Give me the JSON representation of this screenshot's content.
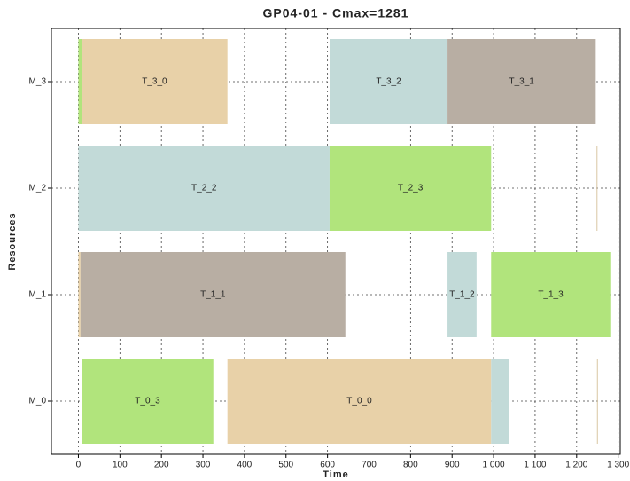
{
  "chart_data": {
    "type": "gantt",
    "title": "GP04-01 - Cmax=1281",
    "xlabel": "Time",
    "ylabel": "Resources",
    "categories": [
      "M_0",
      "M_1",
      "M_2",
      "M_3"
    ],
    "tasks": [
      [
        {
          "start": 8,
          "end": 325,
          "label": "T_0_3",
          "color": "#b1e47c"
        },
        {
          "start": 359,
          "end": 994,
          "label": "T_0_0",
          "color": "#e8d1a8"
        },
        {
          "start": 994,
          "end": 1038,
          "color": "#c2dad8"
        },
        {
          "start": 1249,
          "end": 1251,
          "color": "#d9c7a3"
        }
      ],
      [
        {
          "start": 0,
          "end": 5,
          "color": "#e8d1a8"
        },
        {
          "start": 5,
          "end": 643,
          "label": "T_1_1",
          "color": "#b8aea3"
        },
        {
          "start": 889,
          "end": 959,
          "label": "T_1_2",
          "color": "#c2dad8"
        },
        {
          "start": 994,
          "end": 1281,
          "label": "T_1_3",
          "color": "#b1e47c"
        }
      ],
      [
        {
          "start": 0,
          "end": 605,
          "label": "T_2_2",
          "color": "#c2dad8"
        },
        {
          "start": 605,
          "end": 994,
          "label": "T_2_3",
          "color": "#b1e47c"
        },
        {
          "start": 1248,
          "end": 1250,
          "color": "#d9c7a3"
        }
      ],
      [
        {
          "start": 0,
          "end": 8,
          "color": "#b1e47c"
        },
        {
          "start": 8,
          "end": 359,
          "label": "T_3_0",
          "color": "#e8d1a8"
        },
        {
          "start": 605,
          "end": 889,
          "label": "T_3_2",
          "color": "#c2dad8"
        },
        {
          "start": 889,
          "end": 1246,
          "label": "T_3_1",
          "color": "#b8aea3"
        }
      ]
    ],
    "xlim": [
      -65,
      1305
    ],
    "ylim": [
      -0.5,
      3.5
    ],
    "xticks": [
      0,
      100,
      200,
      300,
      400,
      500,
      600,
      700,
      800,
      900,
      {
        "value": 1000,
        "label": "1 000"
      },
      {
        "value": 1100,
        "label": "1 100"
      },
      {
        "value": 1200,
        "label": "1 200"
      },
      {
        "value": 1300,
        "label": "1 300"
      }
    ],
    "grid": true
  }
}
